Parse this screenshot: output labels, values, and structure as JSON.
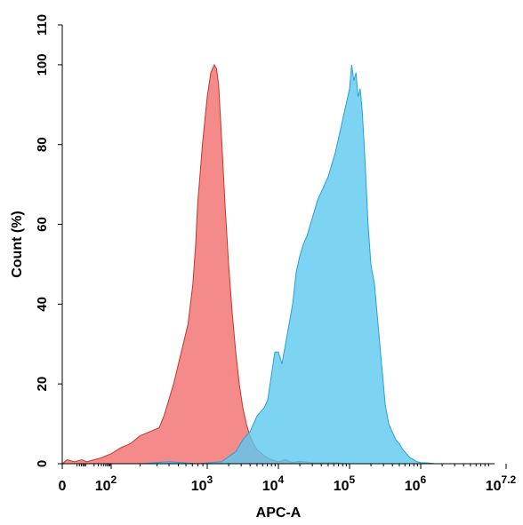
{
  "chart_data": {
    "type": "area",
    "title": "",
    "xlabel": "APC-A",
    "ylabel": "Count (%)",
    "x_scale": "log (biexponential)",
    "xlim": [
      0,
      7.2
    ],
    "ylim": [
      0,
      110
    ],
    "grid": false,
    "legend": "none",
    "x_ticks": [
      {
        "value": 0,
        "base": "0",
        "exp": ""
      },
      {
        "value": 2,
        "base": "10",
        "exp": "2"
      },
      {
        "value": 3,
        "base": "10",
        "exp": "3"
      },
      {
        "value": 4,
        "base": "10",
        "exp": "4"
      },
      {
        "value": 5,
        "base": "10",
        "exp": "5"
      },
      {
        "value": 6,
        "base": "10",
        "exp": "6"
      },
      {
        "value": 7.2,
        "base": "10",
        "exp": "7.2"
      }
    ],
    "y_ticks": [
      0,
      20,
      40,
      60,
      80,
      100,
      110
    ],
    "series": [
      {
        "color": "#f26d6d",
        "stroke": "#c0392b",
        "x_log10": [
          0.0,
          0.2,
          0.5,
          0.8,
          1.0,
          1.3,
          1.6,
          1.8,
          2.0,
          2.1,
          2.2,
          2.3,
          2.4,
          2.5,
          2.55,
          2.6,
          2.65,
          2.7,
          2.75,
          2.8,
          2.85,
          2.88,
          2.9,
          2.95,
          3.0,
          3.05,
          3.1,
          3.13,
          3.16,
          3.2,
          3.25,
          3.3,
          3.35,
          3.4,
          3.45,
          3.5,
          3.55,
          3.6,
          3.65,
          3.7,
          3.8,
          3.9,
          4.0,
          4.1,
          4.2,
          4.3,
          4.5,
          4.8,
          5.0
        ],
        "y": [
          0,
          1,
          0.5,
          1,
          0.5,
          1,
          1.5,
          2,
          2.5,
          4,
          5,
          7,
          8,
          9,
          12,
          16,
          20,
          25,
          30,
          35,
          45,
          55,
          65,
          80,
          92,
          98,
          100,
          99,
          95,
          82,
          65,
          50,
          38,
          28,
          20,
          14,
          10,
          7,
          5,
          3.5,
          2,
          1,
          0.5,
          1,
          0.3,
          0.6,
          0.2,
          0.3,
          0
        ],
        "name": ""
      },
      {
        "color": "#5bc8ef",
        "stroke": "#2a9fd6",
        "x_log10": [
          2.3,
          2.6,
          2.9,
          3.2,
          3.4,
          3.5,
          3.6,
          3.65,
          3.7,
          3.8,
          3.85,
          3.9,
          3.95,
          4.0,
          4.05,
          4.1,
          4.15,
          4.2,
          4.25,
          4.3,
          4.35,
          4.4,
          4.45,
          4.5,
          4.55,
          4.6,
          4.65,
          4.7,
          4.75,
          4.8,
          4.85,
          4.9,
          4.95,
          5.0,
          5.03,
          5.06,
          5.09,
          5.12,
          5.15,
          5.18,
          5.22,
          5.26,
          5.3,
          5.35,
          5.4,
          5.45,
          5.5,
          5.55,
          5.6,
          5.65,
          5.7,
          5.75,
          5.8,
          5.85,
          5.9,
          5.95,
          6.0,
          6.1,
          6.2
        ],
        "y": [
          0,
          0.5,
          0,
          0.5,
          3,
          6,
          8,
          10,
          12,
          14,
          16,
          22,
          28,
          28,
          25,
          30,
          35,
          40,
          48,
          52,
          55,
          57,
          60,
          63,
          66,
          68,
          70,
          72,
          75,
          78,
          82,
          86,
          90,
          94,
          100,
          96,
          98,
          92,
          94,
          88,
          75,
          60,
          50,
          45,
          35,
          25,
          15,
          10,
          8,
          6,
          5,
          3.5,
          2.5,
          1.5,
          1,
          0.5,
          0.3,
          0.2,
          0
        ],
        "name": ""
      }
    ]
  }
}
